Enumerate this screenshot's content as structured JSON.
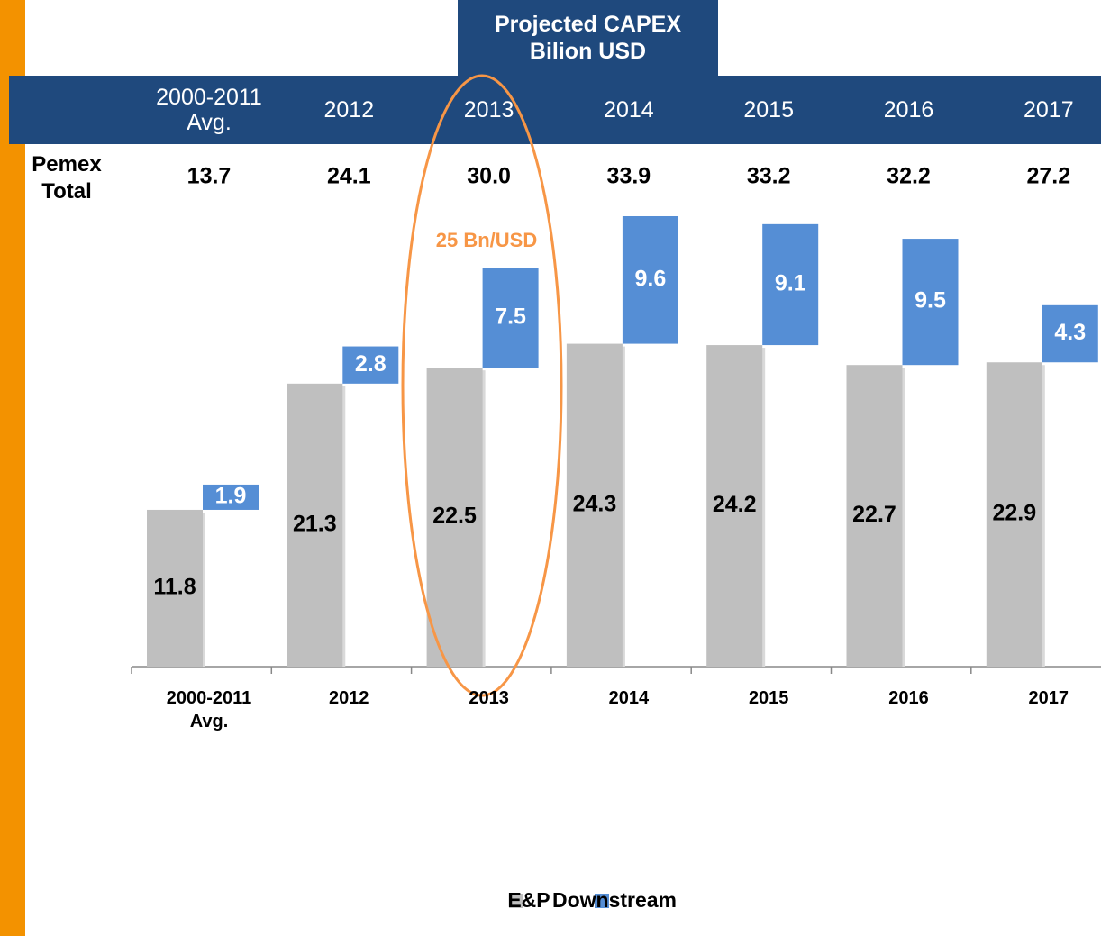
{
  "chart_data": {
    "type": "bar",
    "title": "Projected CAPEX",
    "subtitle": "Bilion USD",
    "categories": [
      "2000-2011 Avg.",
      "2012",
      "2013",
      "2014",
      "2015",
      "2016",
      "2017"
    ],
    "totals": {
      "name": "Pemex Total",
      "values": [
        13.7,
        24.1,
        30.0,
        33.9,
        33.2,
        32.2,
        27.2
      ],
      "value_labels": [
        "13.7",
        "24.1",
        "30.0",
        "33.9",
        "33.2",
        "32.2",
        "27.2"
      ]
    },
    "series": [
      {
        "name": "E&P",
        "color": "#bfbfbf",
        "values": [
          11.8,
          21.3,
          22.5,
          24.3,
          24.2,
          22.7,
          22.9
        ]
      },
      {
        "name": "Downstream",
        "color": "#558ed5",
        "values": [
          1.9,
          2.8,
          7.5,
          9.6,
          9.1,
          9.5,
          4.3
        ]
      }
    ],
    "annotation": "25 Bn/USD",
    "highlight_color": "#f79646"
  }
}
